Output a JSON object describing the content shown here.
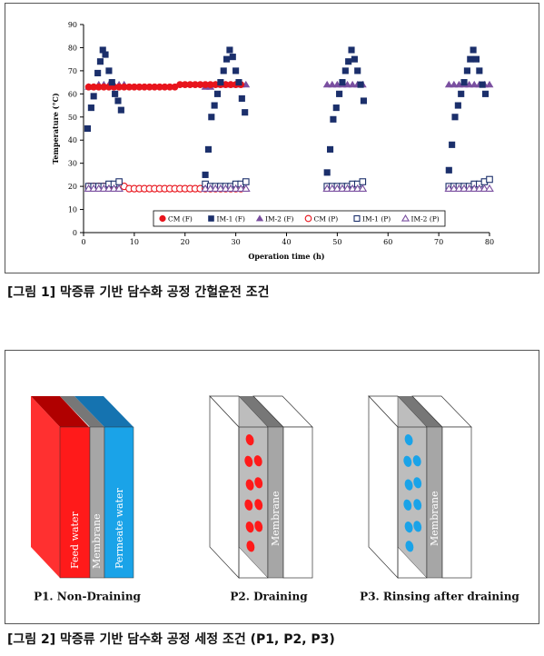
{
  "figure1": {
    "caption": "[그림 1] 막증류 기반 담수화 공정 간헐운전 조건"
  },
  "figure2": {
    "caption": "[그림 2] 막증류 기반 담수화 공정 세정 조건 (P1, P2, P3)",
    "panels": [
      {
        "title": "P1. Non-Draining",
        "layers": [
          "Feed water",
          "Membrane",
          "Permeate water"
        ],
        "colors": {
          "feed": "#ff2a2a",
          "membrane": "#a6a6a6",
          "permeate": "#1aa3e8"
        }
      },
      {
        "title": "P2. Draining",
        "layers": [
          "Membrane"
        ],
        "droplet_color": "#ff1a1a"
      },
      {
        "title": "P3. Rinsing after draining",
        "layers": [
          "Membrane"
        ],
        "droplet_color": "#1aa3e8"
      }
    ]
  },
  "chart_data": {
    "type": "scatter",
    "xlabel": "Operation time (h)",
    "ylabel": "Temperature (°C)",
    "xlim": [
      0,
      80
    ],
    "ylim": [
      0,
      90
    ],
    "xticks": [
      0,
      10,
      20,
      30,
      40,
      50,
      60,
      70,
      80
    ],
    "yticks": [
      0,
      10,
      20,
      30,
      40,
      50,
      60,
      70,
      80,
      90
    ],
    "legend_position": "bottom",
    "series": [
      {
        "name": "CM (F)",
        "marker": "circle-filled",
        "color": "#e8141c",
        "x": [
          1,
          2,
          3,
          4,
          5,
          6,
          7,
          8,
          9,
          10,
          11,
          12,
          13,
          14,
          15,
          16,
          17,
          18,
          19,
          20,
          21,
          22,
          23,
          24,
          25,
          26,
          27,
          28,
          29,
          30,
          31
        ],
        "y": [
          63,
          63,
          63,
          63,
          63,
          63,
          63,
          63,
          63,
          63,
          63,
          63,
          63,
          63,
          63,
          63,
          63,
          63,
          64,
          64,
          64,
          64,
          64,
          64,
          64,
          64,
          64,
          64,
          64,
          64,
          64
        ]
      },
      {
        "name": "IM-1 (F)",
        "marker": "square-filled",
        "color": "#1b2f6b",
        "x": [
          0.8,
          1.5,
          2,
          2.8,
          3.3,
          3.8,
          4.3,
          5,
          5.6,
          6.2,
          6.8,
          7.4,
          24,
          24.6,
          25.2,
          25.8,
          26.4,
          27,
          27.6,
          28.2,
          28.8,
          29.4,
          30,
          30.6,
          31.2,
          31.8,
          48,
          48.6,
          49.2,
          49.8,
          50.4,
          51,
          51.6,
          52.2,
          52.8,
          53.4,
          54,
          54.6,
          55.2,
          72,
          72.6,
          73.2,
          73.8,
          74.4,
          75,
          75.6,
          76.2,
          76.8,
          77.4,
          78,
          78.6,
          79.2
        ],
        "y": [
          45,
          54,
          59,
          69,
          74,
          79,
          77,
          70,
          65,
          60,
          57,
          53,
          25,
          36,
          50,
          55,
          60,
          65,
          70,
          75,
          79,
          76,
          70,
          65,
          58,
          52,
          26,
          36,
          49,
          54,
          60,
          65,
          70,
          74,
          79,
          75,
          70,
          64,
          57,
          27,
          38,
          50,
          55,
          60,
          65,
          70,
          75,
          79,
          75,
          70,
          64,
          60
        ]
      },
      {
        "name": "IM-2 (F)",
        "marker": "triangle-filled",
        "color": "#7a4fa0",
        "x": [
          1,
          2,
          3,
          4,
          5,
          6,
          7,
          8,
          24,
          25,
          26,
          27,
          28,
          29,
          30,
          31,
          32,
          48,
          49,
          50,
          51,
          52,
          53,
          54,
          55,
          72,
          73,
          74,
          75,
          76,
          77,
          78,
          79,
          80
        ],
        "y": [
          63,
          63,
          64,
          64,
          64,
          64,
          64,
          64,
          63,
          63,
          64,
          64,
          64,
          64,
          64,
          64,
          64,
          64,
          64,
          64,
          64,
          64,
          64,
          64,
          64,
          64,
          64,
          64,
          64,
          64,
          64,
          64,
          64,
          64
        ]
      },
      {
        "name": "CM (P)",
        "marker": "circle-open",
        "color": "#e8141c",
        "x": [
          1,
          2,
          3,
          4,
          5,
          6,
          7,
          8,
          9,
          10,
          11,
          12,
          13,
          14,
          15,
          16,
          17,
          18,
          19,
          20,
          21,
          22,
          23,
          24,
          25,
          26,
          27,
          28,
          29,
          30,
          31
        ],
        "y": [
          20,
          20,
          20,
          20,
          20,
          20,
          20,
          20,
          19,
          19,
          19,
          19,
          19,
          19,
          19,
          19,
          19,
          19,
          19,
          19,
          19,
          19,
          19,
          19,
          19,
          19,
          19,
          19,
          19,
          19,
          19
        ]
      },
      {
        "name": "IM-1 (P)",
        "marker": "square-open",
        "color": "#1b2f6b",
        "x": [
          1,
          2,
          3,
          4,
          5,
          6,
          7,
          24,
          25,
          26,
          27,
          28,
          29,
          30,
          31,
          32,
          48,
          49,
          50,
          51,
          52,
          53,
          54,
          55,
          72,
          73,
          74,
          75,
          76,
          77,
          78,
          79,
          80
        ],
        "y": [
          20,
          20,
          20,
          20,
          21,
          21,
          22,
          21,
          20,
          20,
          20,
          20,
          20,
          21,
          21,
          22,
          20,
          20,
          20,
          20,
          20,
          21,
          21,
          22,
          20,
          20,
          20,
          20,
          20,
          21,
          21,
          22,
          23
        ]
      },
      {
        "name": "IM-2 (P)",
        "marker": "triangle-open",
        "color": "#7a4fa0",
        "x": [
          1,
          2,
          3,
          4,
          5,
          6,
          7,
          24,
          25,
          26,
          27,
          28,
          29,
          30,
          31,
          32,
          48,
          49,
          50,
          51,
          52,
          53,
          54,
          55,
          72,
          73,
          74,
          75,
          76,
          77,
          78,
          79,
          80
        ],
        "y": [
          19,
          19,
          19,
          19,
          19,
          19,
          19,
          19,
          19,
          19,
          19,
          19,
          19,
          19,
          19,
          19,
          19,
          19,
          19,
          19,
          19,
          19,
          19,
          19,
          19,
          19,
          19,
          19,
          19,
          19,
          19,
          19,
          19
        ]
      }
    ]
  }
}
